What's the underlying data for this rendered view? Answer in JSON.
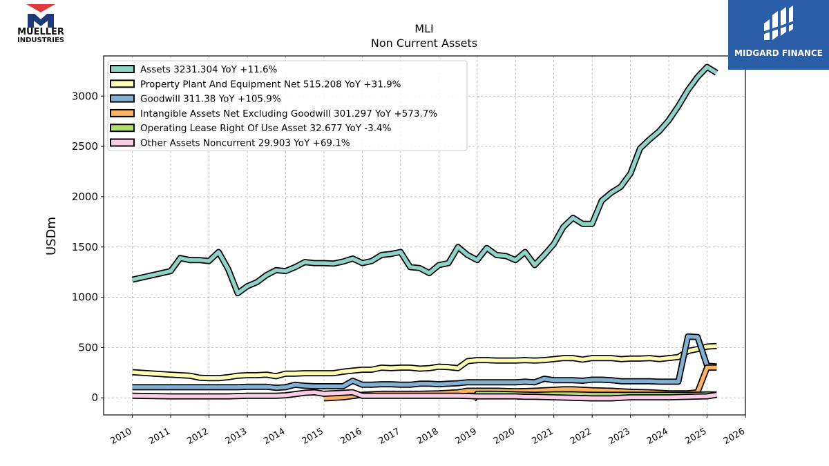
{
  "header": {
    "ticker": "MLI",
    "subtitle": "Non Current  Assets"
  },
  "logos": {
    "left_line1": "MUELLER",
    "left_line2": "INDUSTRIES",
    "right_brand": "MIDGARD FINANCE"
  },
  "colors": {
    "accent_red": "#e03a3e",
    "accent_navy": "#1f3a7a",
    "brand_blue": "#2b5ea8"
  },
  "chart_data": {
    "type": "line",
    "title": "MLI",
    "subtitle": "Non Current  Assets",
    "ylabel": "USDm",
    "xlabel": "",
    "xlim": [
      2009.25,
      2026.0
    ],
    "ylim": [
      -170,
      3400
    ],
    "yticks": [
      0,
      500,
      1000,
      1500,
      2000,
      2500,
      3000
    ],
    "xticks": [
      "2010",
      "2011",
      "2012",
      "2013",
      "2014",
      "2015",
      "2016",
      "2017",
      "2018",
      "2019",
      "2020",
      "2021",
      "2022",
      "2023",
      "2024",
      "2025",
      "2026"
    ],
    "grid": true,
    "legend_position": "top-left",
    "series": [
      {
        "name": "Assets",
        "legend": "Assets  3231.304 YoY +11.6%",
        "color": "#8dd3c7",
        "points": [
          [
            2010.0,
            1175
          ],
          [
            2011.0,
            1260
          ],
          [
            2011.25,
            1390
          ],
          [
            2011.5,
            1370
          ],
          [
            2011.75,
            1370
          ],
          [
            2012.0,
            1360
          ],
          [
            2012.25,
            1450
          ],
          [
            2012.5,
            1280
          ],
          [
            2012.75,
            1040
          ],
          [
            2013.0,
            1110
          ],
          [
            2013.25,
            1150
          ],
          [
            2013.5,
            1220
          ],
          [
            2013.75,
            1270
          ],
          [
            2014.0,
            1260
          ],
          [
            2014.25,
            1300
          ],
          [
            2014.5,
            1350
          ],
          [
            2014.75,
            1340
          ],
          [
            2015.0,
            1340
          ],
          [
            2015.25,
            1335
          ],
          [
            2015.5,
            1355
          ],
          [
            2015.75,
            1385
          ],
          [
            2016.0,
            1340
          ],
          [
            2016.25,
            1360
          ],
          [
            2016.5,
            1420
          ],
          [
            2016.75,
            1430
          ],
          [
            2017.0,
            1450
          ],
          [
            2017.25,
            1300
          ],
          [
            2017.5,
            1290
          ],
          [
            2017.75,
            1240
          ],
          [
            2018.0,
            1320
          ],
          [
            2018.25,
            1340
          ],
          [
            2018.5,
            1500
          ],
          [
            2018.75,
            1420
          ],
          [
            2019.0,
            1370
          ],
          [
            2019.25,
            1490
          ],
          [
            2019.5,
            1420
          ],
          [
            2019.75,
            1410
          ],
          [
            2020.0,
            1370
          ],
          [
            2020.25,
            1450
          ],
          [
            2020.5,
            1320
          ],
          [
            2020.75,
            1420
          ],
          [
            2021.0,
            1530
          ],
          [
            2021.25,
            1700
          ],
          [
            2021.5,
            1790
          ],
          [
            2021.75,
            1730
          ],
          [
            2022.0,
            1730
          ],
          [
            2022.25,
            1960
          ],
          [
            2022.5,
            2040
          ],
          [
            2022.75,
            2100
          ],
          [
            2023.0,
            2230
          ],
          [
            2023.25,
            2480
          ],
          [
            2023.5,
            2570
          ],
          [
            2023.75,
            2650
          ],
          [
            2024.0,
            2760
          ],
          [
            2024.25,
            2900
          ],
          [
            2024.5,
            3060
          ],
          [
            2024.75,
            3190
          ],
          [
            2025.0,
            3290
          ],
          [
            2025.25,
            3231.304
          ]
        ]
      },
      {
        "name": "Property Plant And Equipment Net",
        "legend": "Property Plant And Equipment Net  515.208 YoY +31.9%",
        "color": "#ffffb3",
        "points": [
          [
            2010.0,
            255
          ],
          [
            2011.0,
            230
          ],
          [
            2011.25,
            225
          ],
          [
            2011.5,
            220
          ],
          [
            2011.75,
            200
          ],
          [
            2012.0,
            195
          ],
          [
            2012.25,
            195
          ],
          [
            2012.5,
            205
          ],
          [
            2012.75,
            220
          ],
          [
            2013.0,
            225
          ],
          [
            2013.25,
            225
          ],
          [
            2013.5,
            230
          ],
          [
            2013.75,
            215
          ],
          [
            2014.0,
            240
          ],
          [
            2014.25,
            240
          ],
          [
            2014.5,
            245
          ],
          [
            2014.75,
            245
          ],
          [
            2015.0,
            245
          ],
          [
            2015.25,
            245
          ],
          [
            2015.5,
            260
          ],
          [
            2015.75,
            270
          ],
          [
            2016.0,
            280
          ],
          [
            2016.25,
            280
          ],
          [
            2016.5,
            300
          ],
          [
            2016.75,
            295
          ],
          [
            2017.0,
            300
          ],
          [
            2017.25,
            300
          ],
          [
            2017.5,
            290
          ],
          [
            2017.75,
            295
          ],
          [
            2018.0,
            310
          ],
          [
            2018.25,
            305
          ],
          [
            2018.5,
            295
          ],
          [
            2018.75,
            365
          ],
          [
            2019.0,
            375
          ],
          [
            2019.25,
            375
          ],
          [
            2019.5,
            370
          ],
          [
            2019.75,
            370
          ],
          [
            2020.0,
            370
          ],
          [
            2020.25,
            375
          ],
          [
            2020.5,
            370
          ],
          [
            2020.75,
            375
          ],
          [
            2021.0,
            385
          ],
          [
            2021.25,
            395
          ],
          [
            2021.5,
            395
          ],
          [
            2021.75,
            380
          ],
          [
            2022.0,
            395
          ],
          [
            2022.25,
            395
          ],
          [
            2022.5,
            395
          ],
          [
            2022.75,
            385
          ],
          [
            2023.0,
            390
          ],
          [
            2023.25,
            390
          ],
          [
            2023.5,
            395
          ],
          [
            2023.75,
            385
          ],
          [
            2024.0,
            395
          ],
          [
            2024.25,
            405
          ],
          [
            2024.5,
            465
          ],
          [
            2024.75,
            485
          ],
          [
            2025.0,
            510
          ],
          [
            2025.25,
            515.208
          ]
        ]
      },
      {
        "name": "Goodwill",
        "legend": "Goodwill  311.38 YoY +105.9%",
        "color": "#80b1d3",
        "points": [
          [
            2010.0,
            105
          ],
          [
            2011.0,
            105
          ],
          [
            2011.25,
            105
          ],
          [
            2011.5,
            105
          ],
          [
            2011.75,
            105
          ],
          [
            2012.0,
            105
          ],
          [
            2012.25,
            105
          ],
          [
            2012.5,
            105
          ],
          [
            2012.75,
            105
          ],
          [
            2013.0,
            110
          ],
          [
            2013.25,
            110
          ],
          [
            2013.5,
            110
          ],
          [
            2013.75,
            100
          ],
          [
            2014.0,
            105
          ],
          [
            2014.25,
            130
          ],
          [
            2014.5,
            120
          ],
          [
            2014.75,
            115
          ],
          [
            2015.0,
            115
          ],
          [
            2015.25,
            115
          ],
          [
            2015.5,
            115
          ],
          [
            2015.75,
            170
          ],
          [
            2016.0,
            130
          ],
          [
            2016.25,
            130
          ],
          [
            2016.5,
            135
          ],
          [
            2016.75,
            135
          ],
          [
            2017.0,
            130
          ],
          [
            2017.25,
            130
          ],
          [
            2017.5,
            140
          ],
          [
            2017.75,
            140
          ],
          [
            2018.0,
            135
          ],
          [
            2018.25,
            140
          ],
          [
            2018.5,
            145
          ],
          [
            2018.75,
            155
          ],
          [
            2019.0,
            155
          ],
          [
            2019.25,
            155
          ],
          [
            2019.5,
            155
          ],
          [
            2019.75,
            155
          ],
          [
            2020.0,
            155
          ],
          [
            2020.25,
            160
          ],
          [
            2020.5,
            155
          ],
          [
            2020.75,
            190
          ],
          [
            2021.0,
            175
          ],
          [
            2021.25,
            175
          ],
          [
            2021.5,
            175
          ],
          [
            2021.75,
            170
          ],
          [
            2022.0,
            180
          ],
          [
            2022.25,
            180
          ],
          [
            2022.5,
            175
          ],
          [
            2022.75,
            165
          ],
          [
            2023.0,
            165
          ],
          [
            2023.25,
            165
          ],
          [
            2023.5,
            165
          ],
          [
            2023.75,
            160
          ],
          [
            2024.0,
            160
          ],
          [
            2024.25,
            160
          ],
          [
            2024.5,
            610
          ],
          [
            2024.75,
            605
          ],
          [
            2025.0,
            320
          ],
          [
            2025.25,
            311.38
          ]
        ]
      },
      {
        "name": "Intangible Assets Net Excluding Goodwill",
        "legend": "Intangible Assets Net Excluding Goodwill  301.297 YoY +573.7%",
        "color": "#fdb462",
        "points": [
          [
            2015.0,
            -5
          ],
          [
            2015.5,
            5
          ],
          [
            2016.0,
            30
          ],
          [
            2016.5,
            40
          ],
          [
            2017.0,
            40
          ],
          [
            2017.5,
            40
          ],
          [
            2018.0,
            45
          ],
          [
            2018.5,
            55
          ],
          [
            2018.75,
            70
          ],
          [
            2019.0,
            70
          ],
          [
            2019.5,
            70
          ],
          [
            2020.0,
            65
          ],
          [
            2020.5,
            70
          ],
          [
            2021.0,
            80
          ],
          [
            2021.25,
            85
          ],
          [
            2021.5,
            85
          ],
          [
            2022.0,
            75
          ],
          [
            2022.5,
            70
          ],
          [
            2023.0,
            60
          ],
          [
            2023.5,
            55
          ],
          [
            2024.0,
            45
          ],
          [
            2024.5,
            45
          ],
          [
            2024.75,
            55
          ],
          [
            2025.0,
            300
          ],
          [
            2025.25,
            301.297
          ]
        ]
      },
      {
        "name": "Operating Lease Right Of Use Asset",
        "legend": "Operating Lease Right Of Use Asset  32.677 YoY -3.4%",
        "color": "#b3de69",
        "points": [
          [
            2018.9,
            -20
          ],
          [
            2019.0,
            40
          ],
          [
            2019.5,
            40
          ],
          [
            2020.0,
            35
          ],
          [
            2020.5,
            30
          ],
          [
            2021.0,
            35
          ],
          [
            2021.5,
            35
          ],
          [
            2022.0,
            30
          ],
          [
            2022.5,
            30
          ],
          [
            2023.0,
            30
          ],
          [
            2023.5,
            30
          ],
          [
            2024.0,
            30
          ],
          [
            2024.5,
            30
          ],
          [
            2025.0,
            34
          ],
          [
            2025.25,
            32.677
          ]
        ]
      },
      {
        "name": "Other Assets Noncurrent",
        "legend": "Other Assets Noncurrent  29.903 YoY +69.1%",
        "color": "#fccde5",
        "points": [
          [
            2010.0,
            20
          ],
          [
            2011.0,
            15
          ],
          [
            2011.5,
            15
          ],
          [
            2012.0,
            15
          ],
          [
            2012.5,
            15
          ],
          [
            2013.0,
            20
          ],
          [
            2013.5,
            20
          ],
          [
            2013.75,
            20
          ],
          [
            2014.0,
            25
          ],
          [
            2014.5,
            50
          ],
          [
            2014.75,
            55
          ],
          [
            2015.0,
            40
          ],
          [
            2015.5,
            50
          ],
          [
            2015.75,
            55
          ],
          [
            2016.0,
            20
          ],
          [
            2016.5,
            20
          ],
          [
            2017.0,
            20
          ],
          [
            2017.5,
            20
          ],
          [
            2018.0,
            20
          ],
          [
            2018.5,
            20
          ],
          [
            2019.0,
            15
          ],
          [
            2019.5,
            15
          ],
          [
            2020.0,
            15
          ],
          [
            2020.25,
            10
          ],
          [
            2020.5,
            10
          ],
          [
            2021.0,
            5
          ],
          [
            2021.5,
            0
          ],
          [
            2022.0,
            -5
          ],
          [
            2022.5,
            -5
          ],
          [
            2023.0,
            5
          ],
          [
            2023.5,
            5
          ],
          [
            2024.0,
            5
          ],
          [
            2024.5,
            10
          ],
          [
            2025.0,
            15
          ],
          [
            2025.25,
            29.903
          ]
        ]
      }
    ]
  }
}
